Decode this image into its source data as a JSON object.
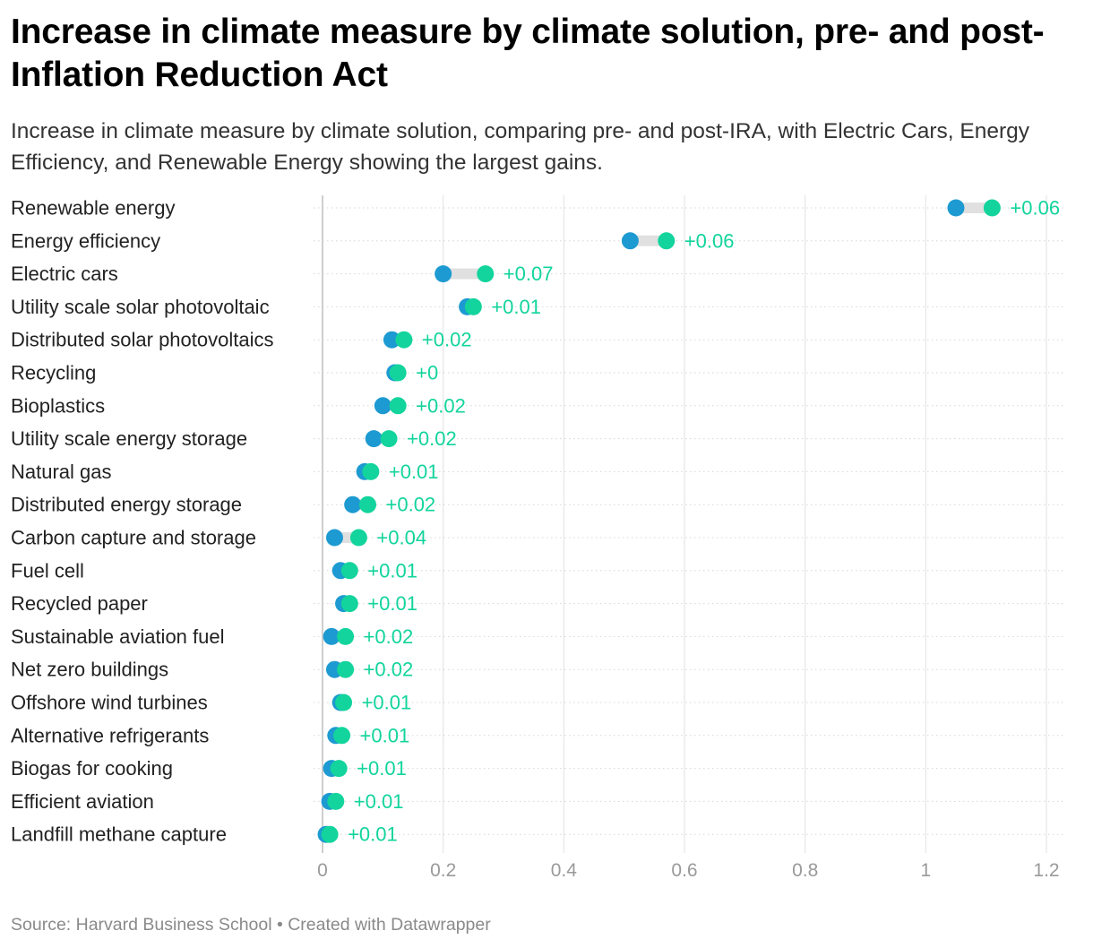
{
  "chart_data": {
    "type": "dot-range",
    "title": "Increase in climate measure by climate solution, pre- and post-Inflation Reduction Act",
    "subtitle": "Increase in climate measure by climate solution, comparing pre- and post-IRA, with Electric Cars, Energy Efficiency, and Renewable Energy showing the largest gains.",
    "xlim": [
      0,
      1.2
    ],
    "xticks": [
      0,
      0.2,
      0.4,
      0.6,
      0.8,
      1,
      1.2
    ],
    "xtick_labels": [
      "0",
      "0.2",
      "0.4",
      "0.6",
      "0.8",
      "1",
      "1.2"
    ],
    "grid": true,
    "series": [
      {
        "name": "Pre-IRA",
        "color": "#1d9ad1"
      },
      {
        "name": "Post-IRA",
        "color": "#12d49c"
      }
    ],
    "rows": [
      {
        "label": "Renewable energy",
        "pre": 1.05,
        "post": 1.11,
        "diff_label": "+0.06"
      },
      {
        "label": "Energy efficiency",
        "pre": 0.51,
        "post": 0.57,
        "diff_label": "+0.06"
      },
      {
        "label": "Electric cars",
        "pre": 0.2,
        "post": 0.27,
        "diff_label": "+0.07"
      },
      {
        "label": "Utility scale solar photovoltaic",
        "pre": 0.24,
        "post": 0.25,
        "diff_label": "+0.01"
      },
      {
        "label": "Distributed solar photovoltaics",
        "pre": 0.115,
        "post": 0.135,
        "diff_label": "+0.02"
      },
      {
        "label": "Recycling",
        "pre": 0.12,
        "post": 0.125,
        "diff_label": "+0"
      },
      {
        "label": "Bioplastics",
        "pre": 0.1,
        "post": 0.125,
        "diff_label": "+0.02"
      },
      {
        "label": "Utility scale energy storage",
        "pre": 0.085,
        "post": 0.11,
        "diff_label": "+0.02"
      },
      {
        "label": "Natural gas",
        "pre": 0.07,
        "post": 0.08,
        "diff_label": "+0.01"
      },
      {
        "label": "Distributed energy storage",
        "pre": 0.05,
        "post": 0.075,
        "diff_label": "+0.02"
      },
      {
        "label": "Carbon capture and storage",
        "pre": 0.02,
        "post": 0.06,
        "diff_label": "+0.04"
      },
      {
        "label": "Fuel cell",
        "pre": 0.03,
        "post": 0.045,
        "diff_label": "+0.01"
      },
      {
        "label": "Recycled paper",
        "pre": 0.035,
        "post": 0.045,
        "diff_label": "+0.01"
      },
      {
        "label": "Sustainable aviation fuel",
        "pre": 0.015,
        "post": 0.038,
        "diff_label": "+0.02"
      },
      {
        "label": "Net zero buildings",
        "pre": 0.02,
        "post": 0.038,
        "diff_label": "+0.02"
      },
      {
        "label": "Offshore wind turbines",
        "pre": 0.03,
        "post": 0.035,
        "diff_label": "+0.01"
      },
      {
        "label": "Alternative refrigerants",
        "pre": 0.022,
        "post": 0.032,
        "diff_label": "+0.01"
      },
      {
        "label": "Biogas for cooking",
        "pre": 0.015,
        "post": 0.027,
        "diff_label": "+0.01"
      },
      {
        "label": "Efficient aviation",
        "pre": 0.012,
        "post": 0.022,
        "diff_label": "+0.01"
      },
      {
        "label": "Landfill methane capture",
        "pre": 0.006,
        "post": 0.012,
        "diff_label": "+0.01"
      }
    ],
    "source": "Source: Harvard Business School • Created with Datawrapper"
  }
}
